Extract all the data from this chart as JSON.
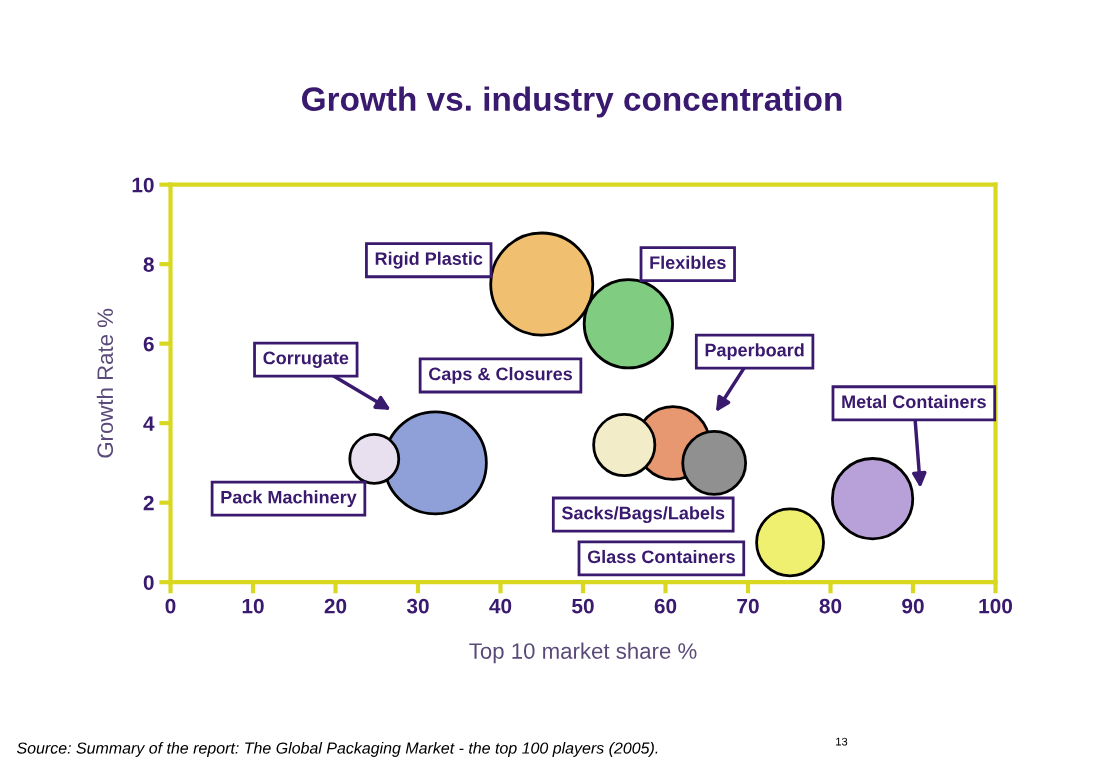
{
  "chart_data": {
    "type": "bubble",
    "title": "Growth vs. industry concentration",
    "xlabel": "Top 10 market share %",
    "ylabel": "Growth Rate %",
    "x": [
      45.0,
      55.5,
      32.1,
      24.7,
      60.9,
      55.0,
      65.9,
      75.1,
      85.1
    ],
    "values": [
      7.5,
      6.5,
      3.0,
      3.1,
      3.5,
      3.45,
      3.0,
      1.0,
      2.1
    ],
    "sizes": [
      1,
      0.75,
      1,
      0.23,
      0.51,
      0.36,
      0.38,
      0.43,
      0.62
    ],
    "colors": [
      "#f0c070",
      "#80cc80",
      "#8fa0d8",
      "#e8e0ee",
      "#e89870",
      "#f2ecc8",
      "#909090",
      "#f0f070",
      "#b8a0d8"
    ],
    "xlim": [
      0,
      100
    ],
    "xticks": [
      0,
      10,
      20,
      30,
      40,
      50,
      60,
      70,
      80,
      90,
      100
    ],
    "ylim": [
      0,
      10
    ],
    "yticks": [
      0,
      2,
      4,
      6,
      8,
      10
    ],
    "annotations": [
      "Rigid Plastic",
      "Flexibles",
      "Corrugate",
      "Caps & Closures",
      "Paperboard",
      "Metal Containers",
      "Pack Machinery",
      "Sacks/Bags/Labels",
      "Glass Containers",
      "Source: Summary of the report: The Global Packaging Market - the top 100 players (2005).",
      "13"
    ]
  }
}
